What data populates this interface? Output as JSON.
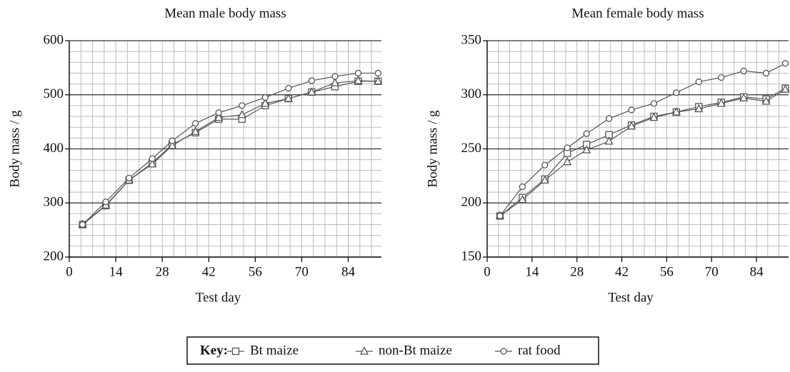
{
  "chart_data": [
    {
      "type": "line",
      "title": "Mean male body mass",
      "xlabel": "Test day",
      "ylabel": "Body mass / g",
      "x": [
        4,
        11,
        18,
        25,
        31,
        38,
        45,
        52,
        59,
        66,
        73,
        80,
        87,
        93
      ],
      "xlim": [
        0,
        94
      ],
      "xticks": [
        0,
        14,
        28,
        42,
        56,
        70,
        84
      ],
      "ylim": [
        200,
        600
      ],
      "yticks": [
        200,
        300,
        400,
        500,
        600
      ],
      "grid": true,
      "series": [
        {
          "name": "Bt maize",
          "marker": "square",
          "color": "#555555",
          "values": [
            260,
            295,
            342,
            374,
            408,
            430,
            455,
            455,
            480,
            493,
            505,
            515,
            525,
            525
          ]
        },
        {
          "name": "non-Bt maize",
          "marker": "triangle",
          "color": "#555555",
          "values": [
            260,
            296,
            342,
            372,
            406,
            432,
            458,
            463,
            484,
            493,
            505,
            522,
            526,
            525
          ]
        },
        {
          "name": "rat food",
          "marker": "circle",
          "color": "#555555",
          "values": [
            260,
            302,
            346,
            382,
            415,
            447,
            467,
            480,
            495,
            512,
            526,
            534,
            540,
            540
          ]
        }
      ]
    },
    {
      "type": "line",
      "title": "Mean female body mass",
      "xlabel": "Test day",
      "ylabel": "Body mass / g",
      "x": [
        4,
        11,
        18,
        25,
        31,
        38,
        45,
        52,
        59,
        66,
        73,
        80,
        87,
        93
      ],
      "xlim": [
        0,
        94
      ],
      "xticks": [
        0,
        14,
        28,
        42,
        56,
        70,
        84
      ],
      "ylim": [
        150,
        350
      ],
      "yticks": [
        150,
        200,
        250,
        300,
        350
      ],
      "grid": true,
      "series": [
        {
          "name": "Bt maize",
          "marker": "square",
          "color": "#555555",
          "values": [
            188,
            205,
            222,
            246,
            254,
            263,
            272,
            280,
            284,
            289,
            293,
            298,
            296,
            306
          ]
        },
        {
          "name": "non-Bt maize",
          "marker": "triangle",
          "color": "#555555",
          "values": [
            188,
            203,
            221,
            238,
            249,
            257,
            271,
            279,
            284,
            287,
            292,
            297,
            294,
            305
          ]
        },
        {
          "name": "rat food",
          "marker": "circle",
          "color": "#555555",
          "values": [
            188,
            215,
            235,
            251,
            264,
            278,
            286,
            292,
            302,
            312,
            316,
            322,
            320,
            329
          ]
        }
      ]
    }
  ],
  "legend": {
    "label": "Key:"
  }
}
